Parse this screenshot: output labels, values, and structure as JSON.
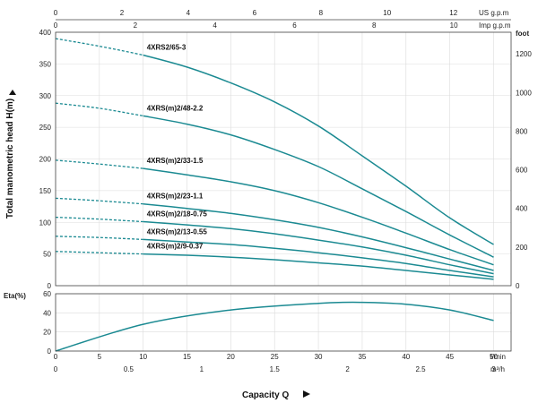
{
  "chart_data": {
    "type": "line",
    "top_axis_1": {
      "unit": "US g.p.m",
      "ticks": [
        0,
        2,
        4,
        6,
        8,
        10,
        12
      ]
    },
    "top_axis_2": {
      "unit": "Imp g.p.m",
      "ticks": [
        0,
        2,
        4,
        6,
        8,
        10
      ]
    },
    "y_left": {
      "label": "Total manometric head H(m)",
      "ticks": [
        0,
        50,
        100,
        150,
        200,
        250,
        300,
        350,
        400
      ],
      "ylim": [
        0,
        400
      ]
    },
    "y_right": {
      "unit": "foot",
      "ticks": [
        0,
        200,
        400,
        600,
        800,
        1000,
        1200
      ]
    },
    "eta": {
      "label": "Eta(%)",
      "ticks": [
        0,
        20,
        40,
        60
      ],
      "ylim": [
        0,
        60
      ],
      "x": [
        0,
        10,
        20,
        30,
        35,
        40,
        45,
        50
      ],
      "values": [
        0,
        28,
        43,
        50,
        51,
        49,
        43,
        32
      ]
    },
    "x_lmin": {
      "unit": "l/min",
      "ticks": [
        0,
        5,
        10,
        15,
        20,
        25,
        30,
        35,
        40,
        45,
        50
      ],
      "xlim": [
        0,
        52
      ]
    },
    "x_m3h": {
      "unit": "m³/h",
      "ticks": [
        "0",
        "0.5",
        "1",
        "1.5",
        "2",
        "2.5",
        "3"
      ]
    },
    "xlabel": "Capacity Q",
    "grid": true,
    "series": [
      {
        "name": "4XRS2/65-3",
        "x": [
          0,
          5,
          10,
          15,
          20,
          25,
          30,
          35,
          40,
          45,
          50
        ],
        "values": [
          390,
          378,
          364,
          345,
          320,
          290,
          252,
          205,
          157,
          107,
          65
        ],
        "dashed_until": 10
      },
      {
        "name": "4XRS(m)2/48-2.2",
        "x": [
          0,
          5,
          10,
          15,
          20,
          25,
          30,
          35,
          40,
          45,
          50
        ],
        "values": [
          288,
          280,
          268,
          255,
          238,
          215,
          188,
          153,
          117,
          80,
          45
        ],
        "dashed_until": 10
      },
      {
        "name": "4XRS(m)2/33-1.5",
        "x": [
          0,
          5,
          10,
          15,
          20,
          25,
          30,
          35,
          40,
          45,
          50
        ],
        "values": [
          198,
          192,
          185,
          175,
          164,
          150,
          131,
          108,
          83,
          57,
          33
        ],
        "dashed_until": 10
      },
      {
        "name": "4XRS(m)2/23-1.1",
        "x": [
          0,
          5,
          10,
          15,
          20,
          25,
          30,
          35,
          40,
          45,
          50
        ],
        "values": [
          138,
          134,
          129,
          122,
          114,
          104,
          92,
          77,
          60,
          42,
          24
        ],
        "dashed_until": 10
      },
      {
        "name": "4XRS(m)2/18-0.75",
        "x": [
          0,
          5,
          10,
          15,
          20,
          25,
          30,
          35,
          40,
          45,
          50
        ],
        "values": [
          108,
          105,
          101,
          96,
          90,
          82,
          72,
          61,
          48,
          33,
          19
        ],
        "dashed_until": 10
      },
      {
        "name": "4XRS(m)2/13-0.55",
        "x": [
          0,
          5,
          10,
          15,
          20,
          25,
          30,
          35,
          40,
          45,
          50
        ],
        "values": [
          78,
          76,
          73,
          69,
          65,
          59,
          52,
          44,
          35,
          24,
          14
        ],
        "dashed_until": 10
      },
      {
        "name": "4XRS(m)2/9-0.37",
        "x": [
          0,
          5,
          10,
          15,
          20,
          25,
          30,
          35,
          40,
          45,
          50
        ],
        "values": [
          54,
          52,
          50,
          48,
          45,
          41,
          36,
          31,
          24,
          17,
          10
        ],
        "dashed_until": 10
      }
    ],
    "line_color": "#1b8a92",
    "grid_color": "#dcdcdc"
  }
}
